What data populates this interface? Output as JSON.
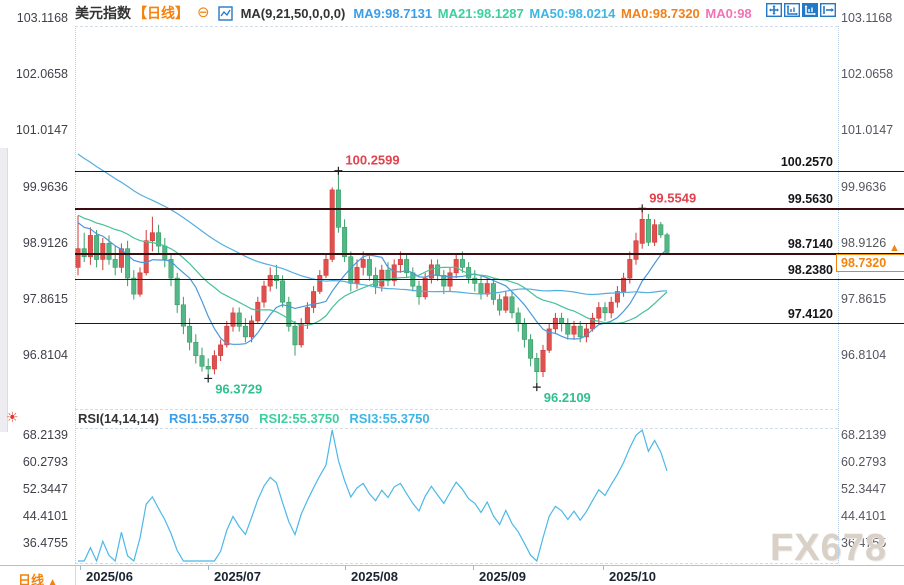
{
  "header": {
    "symbol": "美元指数",
    "period_tag": "【日线】",
    "collapse_glyph": "⊖",
    "ma_params": "MA(9,21,50,0,0,0)",
    "ma_values": [
      {
        "label": "MA9:98.7131",
        "color": "#3b9de8"
      },
      {
        "label": "MA21:98.1287",
        "color": "#3ecf9e"
      },
      {
        "label": "MA50:98.0214",
        "color": "#3eb5e5"
      },
      {
        "label": "MA0:98.7320",
        "color": "#f08119"
      },
      {
        "label": "MA0:98",
        "color": "#f473b5"
      }
    ]
  },
  "toolbar": {
    "icons": [
      "pan-crosshair-icon",
      "axes-zoom-icon",
      "axes-scale-active-icon",
      "exit-chart-icon"
    ]
  },
  "rsi": {
    "params": "RSI(14,14,14)",
    "values": [
      {
        "label": "RSI1:55.3750",
        "color": "#3b9de8"
      },
      {
        "label": "RSI2:55.3750",
        "color": "#3ecf9e"
      },
      {
        "label": "RSI3:55.3750",
        "color": "#3eb5e5"
      }
    ],
    "settings_icon": "☀"
  },
  "price_axis": {
    "ticks": [
      "103.1168",
      "102.0658",
      "101.0147",
      "99.9636",
      "98.9126",
      "97.8615",
      "96.8104"
    ],
    "current_price": "98.7320",
    "arrow_glyph": "▲"
  },
  "bottom": {
    "tab_label": "日线",
    "tab_arrow": "▲"
  },
  "watermark": "FX678",
  "colors": {
    "up": "#e0504d",
    "up_stroke": "#cf3a3c",
    "down": "#54b787",
    "down_stroke": "#379e66",
    "ma9": "#4a97d9",
    "ma21": "#45c29a",
    "ma50": "#53aee0",
    "rsi_line": "#4cb8e8",
    "level_line": "#3a0e10",
    "annotation_high": "#e0424e",
    "annotation_low": "#2fbf90",
    "accent_orange": "#f5820a"
  },
  "chart_data": {
    "type": "candlestick",
    "title": "美元指数 日线 (US Dollar Index, daily)",
    "x_axis": {
      "tick_labels": [
        "2025/06",
        "2025/07",
        "2025/08",
        "2025/09",
        "2025/10"
      ],
      "tick_x": [
        80,
        208,
        345,
        473,
        603
      ]
    },
    "y_axis": {
      "tick_values": [
        103.1168,
        102.0658,
        101.0147,
        99.9636,
        98.9126,
        97.8615,
        96.8104
      ],
      "range": [
        96.2,
        103.2
      ]
    },
    "level_lines": [
      100.257,
      99.563,
      98.714,
      98.238,
      97.412
    ],
    "current_price": 98.732,
    "annotations": [
      {
        "text": "100.2599",
        "index": 42,
        "price": 100.2599,
        "kind": "high"
      },
      {
        "text": "99.5549",
        "index": 91,
        "price": 99.5549,
        "kind": "high"
      },
      {
        "text": "96.3729",
        "index": 21,
        "price": 96.3729,
        "kind": "low"
      },
      {
        "text": "96.2109",
        "index": 74,
        "price": 96.2109,
        "kind": "low"
      }
    ],
    "overlays": {
      "ma_periods": [
        9,
        21,
        50
      ]
    },
    "rsi_panel": {
      "type": "line",
      "params": [
        14,
        14,
        14
      ],
      "tick_values": [
        68.2139,
        60.2793,
        52.3447,
        44.4101,
        36.4755
      ],
      "last_value": 55.375
    },
    "candles_ohlc": [
      [
        98.45,
        99.42,
        98.3,
        98.8
      ],
      [
        98.8,
        99.1,
        98.55,
        98.65
      ],
      [
        98.65,
        99.2,
        98.5,
        99.05
      ],
      [
        99.05,
        99.15,
        98.45,
        98.6
      ],
      [
        98.6,
        99.0,
        98.4,
        98.9
      ],
      [
        98.9,
        99.05,
        98.5,
        98.6
      ],
      [
        98.6,
        98.85,
        98.3,
        98.45
      ],
      [
        98.45,
        98.9,
        98.35,
        98.8
      ],
      [
        98.8,
        98.95,
        98.1,
        98.25
      ],
      [
        98.25,
        98.4,
        97.85,
        97.95
      ],
      [
        97.95,
        98.45,
        97.9,
        98.35
      ],
      [
        98.35,
        99.15,
        98.3,
        98.95
      ],
      [
        98.95,
        99.4,
        98.75,
        99.1
      ],
      [
        99.1,
        99.25,
        98.7,
        98.85
      ],
      [
        98.85,
        99.0,
        98.45,
        98.6
      ],
      [
        98.6,
        98.7,
        98.1,
        98.25
      ],
      [
        98.25,
        98.35,
        97.6,
        97.75
      ],
      [
        97.75,
        97.9,
        97.2,
        97.35
      ],
      [
        97.35,
        97.5,
        96.9,
        97.05
      ],
      [
        97.05,
        97.2,
        96.65,
        96.8
      ],
      [
        96.8,
        96.95,
        96.5,
        96.6
      ],
      [
        96.6,
        96.75,
        96.3729,
        96.55
      ],
      [
        96.55,
        96.9,
        96.45,
        96.8
      ],
      [
        96.8,
        97.1,
        96.7,
        97.0
      ],
      [
        97.0,
        97.45,
        96.95,
        97.35
      ],
      [
        97.35,
        97.7,
        97.25,
        97.6
      ],
      [
        97.6,
        97.7,
        97.25,
        97.35
      ],
      [
        97.35,
        97.5,
        97.05,
        97.15
      ],
      [
        97.15,
        97.55,
        97.05,
        97.45
      ],
      [
        97.45,
        97.9,
        97.4,
        97.8
      ],
      [
        97.8,
        98.2,
        97.7,
        98.1
      ],
      [
        98.1,
        98.45,
        98.0,
        98.3
      ],
      [
        98.3,
        98.5,
        98.05,
        98.2
      ],
      [
        98.2,
        98.3,
        97.7,
        97.8
      ],
      [
        97.8,
        97.9,
        97.25,
        97.35
      ],
      [
        97.35,
        97.45,
        96.8,
        97.0
      ],
      [
        97.0,
        97.5,
        96.95,
        97.4
      ],
      [
        97.4,
        97.8,
        97.3,
        97.7
      ],
      [
        97.7,
        98.1,
        97.6,
        98.0
      ],
      [
        98.0,
        98.4,
        97.95,
        98.3
      ],
      [
        98.3,
        98.7,
        98.25,
        98.6
      ],
      [
        98.6,
        99.95,
        98.55,
        99.9
      ],
      [
        99.9,
        100.2599,
        99.1,
        99.2
      ],
      [
        99.2,
        99.35,
        98.55,
        98.65
      ],
      [
        98.65,
        98.75,
        98.0,
        98.15
      ],
      [
        98.15,
        98.6,
        98.05,
        98.45
      ],
      [
        98.45,
        98.75,
        98.3,
        98.6
      ],
      [
        98.6,
        98.7,
        98.2,
        98.3
      ],
      [
        98.3,
        98.45,
        97.95,
        98.1
      ],
      [
        98.1,
        98.5,
        98.0,
        98.4
      ],
      [
        98.4,
        98.55,
        98.1,
        98.2
      ],
      [
        98.2,
        98.6,
        98.1,
        98.5
      ],
      [
        98.5,
        98.75,
        98.35,
        98.6
      ],
      [
        98.6,
        98.7,
        98.25,
        98.35
      ],
      [
        98.35,
        98.45,
        98.0,
        98.1
      ],
      [
        98.1,
        98.2,
        97.75,
        97.9
      ],
      [
        97.9,
        98.35,
        97.85,
        98.25
      ],
      [
        98.25,
        98.6,
        98.15,
        98.5
      ],
      [
        98.5,
        98.6,
        98.2,
        98.3
      ],
      [
        98.3,
        98.4,
        97.95,
        98.1
      ],
      [
        98.1,
        98.45,
        98.0,
        98.35
      ],
      [
        98.35,
        98.7,
        98.25,
        98.6
      ],
      [
        98.6,
        98.75,
        98.35,
        98.45
      ],
      [
        98.45,
        98.55,
        98.15,
        98.25
      ],
      [
        98.25,
        98.4,
        98.0,
        98.15
      ],
      [
        98.15,
        98.3,
        97.85,
        97.95
      ],
      [
        97.95,
        98.25,
        97.9,
        98.15
      ],
      [
        98.15,
        98.25,
        97.75,
        97.85
      ],
      [
        97.85,
        97.95,
        97.55,
        97.65
      ],
      [
        97.65,
        98.0,
        97.6,
        97.9
      ],
      [
        97.9,
        98.0,
        97.5,
        97.6
      ],
      [
        97.6,
        97.7,
        97.25,
        97.4
      ],
      [
        97.4,
        97.5,
        96.95,
        97.1
      ],
      [
        97.1,
        97.2,
        96.6,
        96.75
      ],
      [
        96.75,
        96.85,
        96.2109,
        96.5
      ],
      [
        96.5,
        97.0,
        96.4,
        96.9
      ],
      [
        96.9,
        97.4,
        96.85,
        97.3
      ],
      [
        97.3,
        97.6,
        97.2,
        97.5
      ],
      [
        97.5,
        97.6,
        97.25,
        97.4
      ],
      [
        97.4,
        97.5,
        97.1,
        97.2
      ],
      [
        97.2,
        97.45,
        97.1,
        97.35
      ],
      [
        97.35,
        97.45,
        97.05,
        97.15
      ],
      [
        97.15,
        97.4,
        97.05,
        97.3
      ],
      [
        97.3,
        97.6,
        97.25,
        97.5
      ],
      [
        97.5,
        97.8,
        97.4,
        97.7
      ],
      [
        97.7,
        97.8,
        97.45,
        97.6
      ],
      [
        97.6,
        97.9,
        97.5,
        97.8
      ],
      [
        97.8,
        98.1,
        97.7,
        98.0
      ],
      [
        98.0,
        98.35,
        97.9,
        98.25
      ],
      [
        98.25,
        98.75,
        98.15,
        98.6
      ],
      [
        98.6,
        99.1,
        98.5,
        98.95
      ],
      [
        98.9,
        99.5549,
        98.8,
        99.35
      ],
      [
        99.35,
        99.45,
        98.85,
        98.92
      ],
      [
        98.92,
        99.35,
        98.85,
        99.25
      ],
      [
        99.25,
        99.3,
        99.0,
        99.06
      ],
      [
        99.06,
        99.1,
        98.7,
        98.73
      ]
    ]
  }
}
